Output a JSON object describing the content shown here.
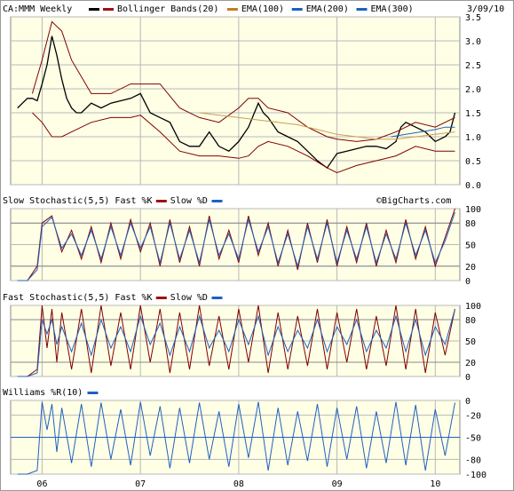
{
  "chart_data": [
    {
      "type": "line",
      "ticker_label": "CA:MMM Weekly",
      "date_label": "3/09/10",
      "legend": [
        {
          "label": "",
          "color": "#000000",
          "swatch_color": "#000000"
        },
        {
          "label": "Bollinger Bands(20)",
          "color": "#800000",
          "swatch_color": "#a01010"
        },
        {
          "label": "EMA(100)",
          "color": "#c8a050",
          "swatch_color": "#c08020"
        },
        {
          "label": "EMA(200)",
          "color": "#2060c0",
          "swatch_color": "#2060c0"
        },
        {
          "label": "EMA(300)",
          "color": "#2060c0",
          "swatch_color": "#2060c0"
        }
      ],
      "y_ticks": [
        "3.5",
        "3.0",
        "2.5",
        "2.0",
        "1.5",
        "1.0",
        "0.5",
        "0.0"
      ],
      "ylim": [
        0,
        3.5
      ],
      "x_ticks": [
        "06",
        "07",
        "08",
        "09",
        "10"
      ],
      "x_tick_values": [
        2006.0,
        2007.0,
        2008.0,
        2009.0,
        2010.0
      ],
      "xlim": [
        2005.68,
        2010.25
      ],
      "series": [
        {
          "role": "price",
          "color": "#000000",
          "x": [
            2005.75,
            2005.8,
            2005.85,
            2005.9,
            2005.95,
            2006.0,
            2006.05,
            2006.1,
            2006.15,
            2006.2,
            2006.25,
            2006.3,
            2006.35,
            2006.4,
            2006.5,
            2006.6,
            2006.7,
            2006.8,
            2006.9,
            2007.0,
            2007.1,
            2007.2,
            2007.3,
            2007.4,
            2007.5,
            2007.6,
            2007.7,
            2007.8,
            2007.9,
            2008.0,
            2008.1,
            2008.2,
            2008.25,
            2008.3,
            2008.4,
            2008.5,
            2008.6,
            2008.7,
            2008.8,
            2008.9,
            2009.0,
            2009.1,
            2009.2,
            2009.3,
            2009.4,
            2009.5,
            2009.6,
            2009.65,
            2009.7,
            2009.8,
            2009.9,
            2010.0,
            2010.1,
            2010.15,
            2010.2
          ],
          "y": [
            1.6,
            1.7,
            1.8,
            1.8,
            1.75,
            2.1,
            2.5,
            3.1,
            2.7,
            2.2,
            1.8,
            1.6,
            1.5,
            1.5,
            1.7,
            1.6,
            1.7,
            1.75,
            1.8,
            1.9,
            1.5,
            1.4,
            1.3,
            0.9,
            0.8,
            0.8,
            1.1,
            0.8,
            0.7,
            0.9,
            1.2,
            1.7,
            1.5,
            1.4,
            1.1,
            1.0,
            0.9,
            0.7,
            0.5,
            0.35,
            0.65,
            0.7,
            0.75,
            0.8,
            0.8,
            0.75,
            0.9,
            1.2,
            1.3,
            1.2,
            1.1,
            0.9,
            1.0,
            1.1,
            1.5
          ]
        },
        {
          "role": "bollinger-upper",
          "color": "#800000",
          "x": [
            2005.9,
            2006.0,
            2006.1,
            2006.2,
            2006.3,
            2006.5,
            2006.7,
            2006.9,
            2007.0,
            2007.2,
            2007.4,
            2007.6,
            2007.8,
            2008.0,
            2008.1,
            2008.2,
            2008.3,
            2008.5,
            2008.7,
            2008.9,
            2009.0,
            2009.2,
            2009.4,
            2009.6,
            2009.8,
            2010.0,
            2010.2
          ],
          "y": [
            1.9,
            2.6,
            3.4,
            3.2,
            2.6,
            1.9,
            1.9,
            2.1,
            2.1,
            2.1,
            1.6,
            1.4,
            1.3,
            1.6,
            1.8,
            1.8,
            1.6,
            1.5,
            1.2,
            1.0,
            0.95,
            0.9,
            0.95,
            1.1,
            1.3,
            1.2,
            1.4
          ]
        },
        {
          "role": "bollinger-lower",
          "color": "#800000",
          "x": [
            2005.9,
            2006.0,
            2006.1,
            2006.2,
            2006.3,
            2006.5,
            2006.7,
            2006.9,
            2007.0,
            2007.2,
            2007.4,
            2007.6,
            2007.8,
            2008.0,
            2008.1,
            2008.2,
            2008.3,
            2008.5,
            2008.7,
            2008.9,
            2009.0,
            2009.2,
            2009.4,
            2009.6,
            2009.8,
            2010.0,
            2010.2
          ],
          "y": [
            1.5,
            1.3,
            1.0,
            1.0,
            1.1,
            1.3,
            1.4,
            1.4,
            1.45,
            1.1,
            0.7,
            0.6,
            0.6,
            0.55,
            0.6,
            0.8,
            0.9,
            0.8,
            0.6,
            0.35,
            0.25,
            0.4,
            0.5,
            0.6,
            0.8,
            0.7,
            0.7
          ]
        },
        {
          "role": "ema-100",
          "color": "#c8a050",
          "x": [
            2007.6,
            2007.8,
            2008.0,
            2008.2,
            2008.4,
            2008.6,
            2008.8,
            2009.0,
            2009.2,
            2009.4,
            2009.6,
            2009.8,
            2010.0,
            2010.2
          ],
          "y": [
            1.5,
            1.45,
            1.4,
            1.35,
            1.3,
            1.25,
            1.15,
            1.05,
            1.0,
            0.95,
            0.95,
            1.0,
            1.05,
            1.1
          ]
        },
        {
          "role": "ema-300",
          "color": "#2060c0",
          "x": [
            2009.55,
            2009.7,
            2009.85,
            2010.0,
            2010.1,
            2010.2
          ],
          "y": [
            1.0,
            1.05,
            1.1,
            1.15,
            1.2,
            1.2
          ]
        }
      ]
    },
    {
      "type": "line",
      "title": "Slow Stochastic(5,5) Fast %K",
      "legend": [
        {
          "label": "Slow %D",
          "color": "#2060c0"
        }
      ],
      "k_swatch_color": "#a01010",
      "y_ticks": [
        "100",
        "80",
        "50",
        "20",
        "0"
      ],
      "ylim": [
        0,
        100
      ],
      "reference_lines": [
        20,
        80
      ],
      "watermark": "©BigCharts.com",
      "series": [
        {
          "role": "%K",
          "color": "#800000",
          "x": [
            2005.75,
            2005.85,
            2005.95,
            2006.0,
            2006.1,
            2006.2,
            2006.3,
            2006.4,
            2006.5,
            2006.6,
            2006.7,
            2006.8,
            2006.9,
            2007.0,
            2007.1,
            2007.2,
            2007.3,
            2007.4,
            2007.5,
            2007.6,
            2007.7,
            2007.8,
            2007.9,
            2008.0,
            2008.1,
            2008.2,
            2008.3,
            2008.4,
            2008.5,
            2008.6,
            2008.7,
            2008.8,
            2008.9,
            2009.0,
            2009.1,
            2009.2,
            2009.3,
            2009.4,
            2009.5,
            2009.6,
            2009.7,
            2009.8,
            2009.9,
            2010.0,
            2010.1,
            2010.2
          ],
          "y": [
            0,
            0,
            20,
            80,
            90,
            40,
            70,
            30,
            75,
            25,
            80,
            30,
            85,
            40,
            80,
            20,
            85,
            25,
            75,
            20,
            90,
            30,
            70,
            25,
            90,
            35,
            80,
            20,
            70,
            15,
            80,
            25,
            85,
            20,
            75,
            25,
            80,
            20,
            70,
            25,
            85,
            30,
            75,
            20,
            60,
            100
          ]
        },
        {
          "role": "%D",
          "color": "#2060c0",
          "x": [
            2005.75,
            2005.85,
            2005.95,
            2006.0,
            2006.1,
            2006.2,
            2006.3,
            2006.4,
            2006.5,
            2006.6,
            2006.7,
            2006.8,
            2006.9,
            2007.0,
            2007.1,
            2007.2,
            2007.3,
            2007.4,
            2007.5,
            2007.6,
            2007.7,
            2007.8,
            2007.9,
            2008.0,
            2008.1,
            2008.2,
            2008.3,
            2008.4,
            2008.5,
            2008.6,
            2008.7,
            2008.8,
            2008.9,
            2009.0,
            2009.1,
            2009.2,
            2009.3,
            2009.4,
            2009.5,
            2009.6,
            2009.7,
            2009.8,
            2009.9,
            2010.0,
            2010.1,
            2010.2
          ],
          "y": [
            0,
            0,
            15,
            75,
            88,
            45,
            65,
            35,
            70,
            30,
            75,
            35,
            80,
            45,
            75,
            25,
            80,
            30,
            70,
            25,
            85,
            35,
            65,
            30,
            85,
            40,
            75,
            25,
            65,
            20,
            75,
            30,
            80,
            25,
            70,
            30,
            75,
            25,
            65,
            30,
            80,
            35,
            70,
            25,
            55,
            95
          ]
        }
      ]
    },
    {
      "type": "line",
      "title": "Fast Stochastic(5,5) Fast %K",
      "legend": [
        {
          "label": "Slow %D",
          "color": "#2060c0"
        }
      ],
      "k_swatch_color": "#a01010",
      "y_ticks": [
        "100",
        "80",
        "50",
        "20",
        "0"
      ],
      "ylim": [
        0,
        100
      ],
      "reference_lines": [
        20,
        80
      ],
      "series": [
        {
          "role": "%K",
          "color": "#800000",
          "x": [
            2005.75,
            2005.85,
            2005.95,
            2006.0,
            2006.05,
            2006.1,
            2006.15,
            2006.2,
            2006.3,
            2006.4,
            2006.5,
            2006.6,
            2006.7,
            2006.8,
            2006.9,
            2007.0,
            2007.1,
            2007.2,
            2007.3,
            2007.4,
            2007.5,
            2007.6,
            2007.7,
            2007.8,
            2007.9,
            2008.0,
            2008.1,
            2008.2,
            2008.3,
            2008.4,
            2008.5,
            2008.6,
            2008.7,
            2008.8,
            2008.9,
            2009.0,
            2009.1,
            2009.2,
            2009.3,
            2009.4,
            2009.5,
            2009.6,
            2009.7,
            2009.8,
            2009.9,
            2010.0,
            2010.1,
            2010.2
          ],
          "y": [
            0,
            0,
            10,
            100,
            40,
            95,
            20,
            90,
            10,
            95,
            5,
            100,
            15,
            90,
            10,
            100,
            20,
            95,
            5,
            90,
            10,
            100,
            15,
            85,
            10,
            95,
            20,
            100,
            5,
            90,
            10,
            85,
            15,
            95,
            10,
            90,
            20,
            95,
            10,
            85,
            15,
            100,
            10,
            95,
            5,
            90,
            30,
            95
          ]
        },
        {
          "role": "%D",
          "color": "#2060c0",
          "x": [
            2005.75,
            2005.85,
            2005.95,
            2006.0,
            2006.05,
            2006.1,
            2006.15,
            2006.2,
            2006.3,
            2006.4,
            2006.5,
            2006.6,
            2006.7,
            2006.8,
            2006.9,
            2007.0,
            2007.1,
            2007.2,
            2007.3,
            2007.4,
            2007.5,
            2007.6,
            2007.7,
            2007.8,
            2007.9,
            2008.0,
            2008.1,
            2008.2,
            2008.3,
            2008.4,
            2008.5,
            2008.6,
            2008.7,
            2008.8,
            2008.9,
            2009.0,
            2009.1,
            2009.2,
            2009.3,
            2009.4,
            2009.5,
            2009.6,
            2009.7,
            2009.8,
            2009.9,
            2010.0,
            2010.1,
            2010.2
          ],
          "y": [
            0,
            0,
            5,
            80,
            60,
            80,
            45,
            70,
            35,
            75,
            30,
            80,
            40,
            70,
            35,
            85,
            45,
            75,
            30,
            70,
            35,
            85,
            40,
            65,
            35,
            80,
            45,
            85,
            30,
            70,
            35,
            65,
            40,
            80,
            35,
            70,
            45,
            80,
            35,
            65,
            40,
            85,
            35,
            80,
            30,
            70,
            45,
            95
          ]
        }
      ]
    },
    {
      "type": "line",
      "title": "Williams %R(10)",
      "legend_swatch_color": "#2060c0",
      "y_ticks": [
        "0",
        "-20",
        "-50",
        "-80",
        "-100"
      ],
      "ylim": [
        -100,
        0
      ],
      "reference_lines": [
        -50
      ],
      "series": [
        {
          "role": "%R",
          "color": "#2060c0",
          "x": [
            2005.75,
            2005.85,
            2005.95,
            2006.0,
            2006.05,
            2006.1,
            2006.15,
            2006.2,
            2006.3,
            2006.4,
            2006.5,
            2006.6,
            2006.7,
            2006.8,
            2006.9,
            2007.0,
            2007.1,
            2007.2,
            2007.3,
            2007.4,
            2007.5,
            2007.6,
            2007.7,
            2007.8,
            2007.9,
            2008.0,
            2008.1,
            2008.2,
            2008.3,
            2008.4,
            2008.5,
            2008.6,
            2008.7,
            2008.8,
            2008.9,
            2009.0,
            2009.1,
            2009.2,
            2009.3,
            2009.4,
            2009.5,
            2009.6,
            2009.7,
            2009.8,
            2009.9,
            2010.0,
            2010.1,
            2010.2
          ],
          "y": [
            -100,
            -100,
            -95,
            -2,
            -40,
            -5,
            -70,
            -10,
            -85,
            -5,
            -90,
            -3,
            -80,
            -12,
            -88,
            -2,
            -75,
            -8,
            -92,
            -10,
            -85,
            -3,
            -80,
            -15,
            -90,
            -5,
            -78,
            -2,
            -95,
            -10,
            -88,
            -15,
            -82,
            -5,
            -90,
            -10,
            -80,
            -8,
            -92,
            -15,
            -85,
            -2,
            -88,
            -6,
            -95,
            -12,
            -75,
            -3
          ]
        }
      ]
    }
  ]
}
